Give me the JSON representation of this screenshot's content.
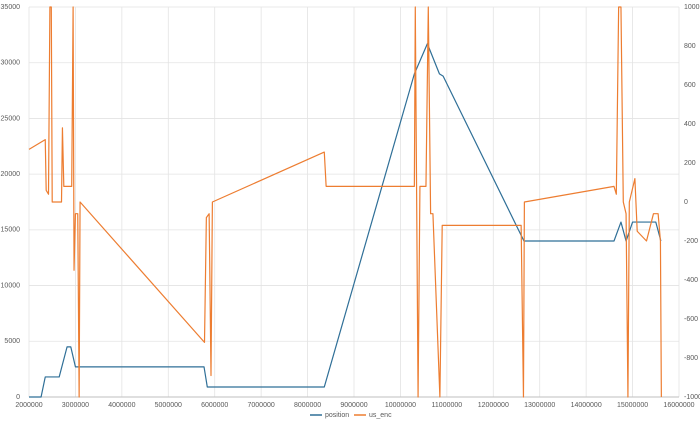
{
  "chart_data": {
    "type": "line",
    "xlim": [
      2000000,
      16000000
    ],
    "xticks": [
      2000000,
      3000000,
      4000000,
      5000000,
      6000000,
      7000000,
      8000000,
      9000000,
      10000000,
      11000000,
      12000000,
      13000000,
      14000000,
      15000000,
      16000000
    ],
    "ylim": [
      0,
      35000
    ],
    "yticks": [
      0,
      5000,
      10000,
      15000,
      20000,
      25000,
      30000,
      35000
    ],
    "y2lim": [
      -1000,
      1000
    ],
    "y2ticks": [
      -1000,
      -800,
      -600,
      -400,
      -200,
      0,
      200,
      400,
      600,
      800,
      1000
    ],
    "grid": true,
    "legend": "bottom",
    "series": [
      {
        "name": "position",
        "color": "#2f6f97",
        "x": [
          2000000,
          2260000,
          2350000,
          2650000,
          2820000,
          2900000,
          3000000,
          5770000,
          5840000,
          8360000,
          10300000,
          10580000,
          10840000,
          10920000,
          12660000,
          14600000,
          14750000,
          14860000,
          15000000,
          15500000,
          15610000
        ],
        "values": [
          0,
          0,
          1800,
          1800,
          4500,
          4500,
          2700,
          2700,
          900,
          900,
          29000,
          31700,
          29000,
          28800,
          14000,
          14000,
          15700,
          14000,
          15700,
          15700,
          14000
        ]
      },
      {
        "name": "us_enc",
        "color": "#ed7d31",
        "axis": "y2",
        "x": [
          2000000,
          2350000,
          2370000,
          2420000,
          2450000,
          2480000,
          2500000,
          2700000,
          2720000,
          2750000,
          2920000,
          2950000,
          2970000,
          3000000,
          3050000,
          3080000,
          3100000,
          5780000,
          5820000,
          5880000,
          5920000,
          5950000,
          8360000,
          8400000,
          10300000,
          10320000,
          10380000,
          10420000,
          10550000,
          10600000,
          10650000,
          10700000,
          10850000,
          10900000,
          12600000,
          12650000,
          12670000,
          14600000,
          14650000,
          14700000,
          14750000,
          14800000,
          14860000,
          14900000,
          14930000,
          15050000,
          15100000,
          15300000,
          15450000,
          15550000,
          15600000,
          15620000
        ],
        "values": [
          270,
          320,
          60,
          40,
          1000,
          1000,
          0,
          0,
          380,
          80,
          80,
          1000,
          -350,
          -60,
          -60,
          -1000,
          0,
          -720,
          -80,
          -60,
          -890,
          0,
          256,
          80,
          80,
          1000,
          -1000,
          80,
          80,
          1000,
          -60,
          -60,
          -1000,
          -120,
          -120,
          -1000,
          0,
          80,
          40,
          1000,
          1000,
          0,
          -60,
          -1000,
          0,
          120,
          -150,
          -200,
          -60,
          -60,
          -200,
          -1000
        ]
      }
    ]
  }
}
